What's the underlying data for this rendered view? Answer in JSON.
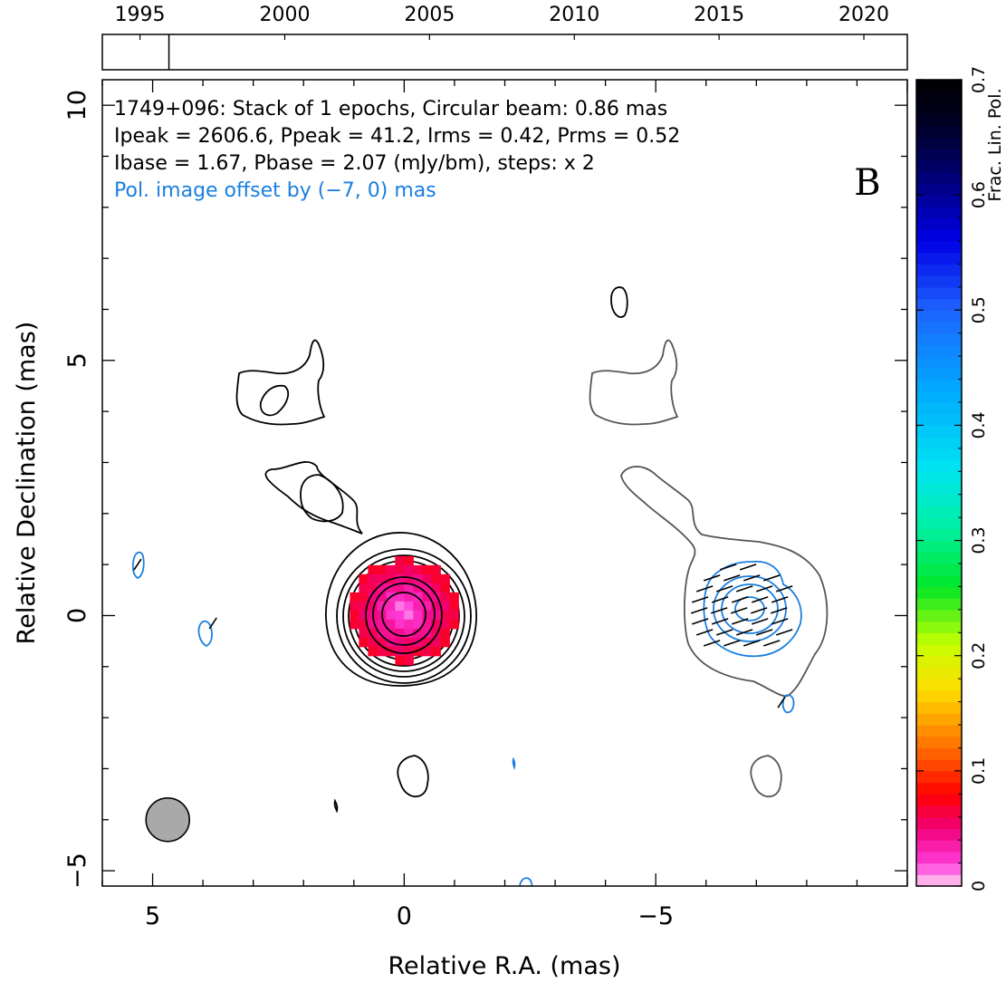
{
  "chart_data": {
    "type": "contour",
    "source": "1749+096",
    "header_lines": [
      "1749+096: Stack of 1 epochs, Circular beam: 0.86 mas",
      "Ipeak = 2606.6, Ppeak = 41.2, Irms = 0.42, Prms = 0.52",
      "Ibase = 1.67, Pbase = 2.07 (mJy/bm), steps: x 2"
    ],
    "offset_note": "Pol. image offset by (−7, 0) mas",
    "panel_letter": "B",
    "xlabel": "Relative R.A. (mas)",
    "ylabel": "Relative Declination (mas)",
    "xlim": [
      6,
      -10
    ],
    "ylim": [
      -5.3,
      10.5
    ],
    "xticks": [
      5,
      0,
      -5
    ],
    "xtick_labels": [
      "5",
      "0",
      "−5"
    ],
    "yticks": [
      10,
      5,
      0,
      -5
    ],
    "ytick_labels": [
      "10",
      "5",
      "0",
      "−5"
    ],
    "timeline": {
      "xlim": [
        1993.7,
        2021.5
      ],
      "ticks": [
        1995,
        2000,
        2005,
        2010,
        2015,
        2020
      ],
      "tick_labels": [
        "1995",
        "2000",
        "2005",
        "2010",
        "2015",
        "2020"
      ],
      "epochs": [
        1996.0
      ]
    },
    "colorbar": {
      "label": "Frac. Lin. Pol.",
      "range": [
        0,
        0.7
      ],
      "ticks": [
        0,
        0.1,
        0.2,
        0.3,
        0.4,
        0.5,
        0.6,
        0.7
      ],
      "tick_labels": [
        "0",
        "0.1",
        "0.2",
        "0.3",
        "0.4",
        "0.5",
        "0.6",
        "0.7"
      ]
    },
    "beam": {
      "ra": 4.7,
      "dec": -4.0,
      "diameter_mas": 0.86
    },
    "stokes_i_contours_levels": 10,
    "pol_contours_levels": 4,
    "polarization_offset_mas": [
      -7,
      0
    ],
    "colors": {
      "stokes_i_contour": "#000000",
      "offset_i_contour": "#555555",
      "pol_contour": "#1a7fe0",
      "evpa_ticks": "#000000",
      "beam_fill": "#a9a9a9",
      "pol_text": "#1a7fe0"
    }
  }
}
